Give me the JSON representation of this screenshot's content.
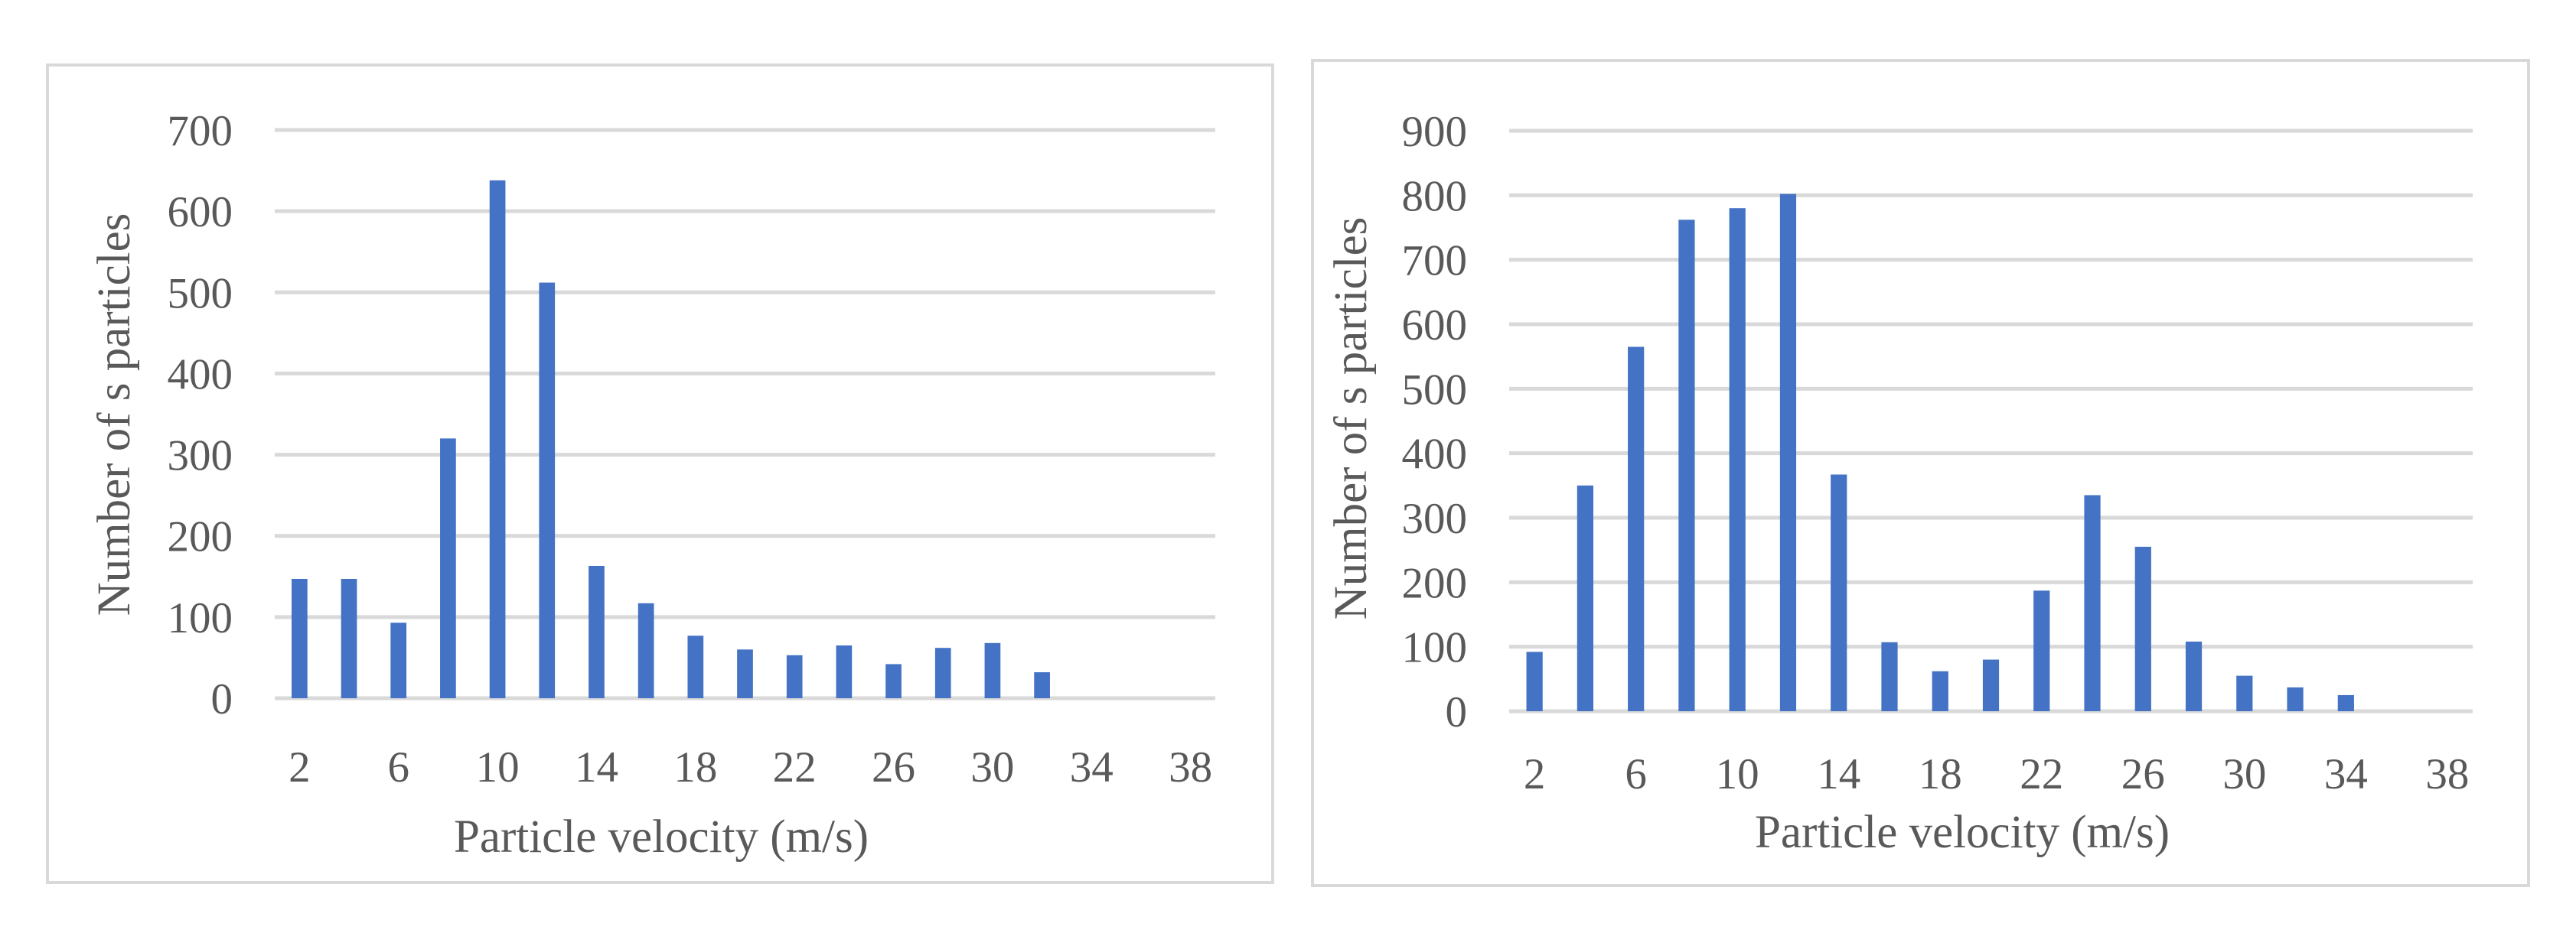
{
  "chart_data": [
    {
      "type": "bar",
      "xlabel": "Particle velocity (m/s)",
      "ylabel": "Number of s particles",
      "ylim": [
        0,
        700
      ],
      "y_ticks": [
        0,
        100,
        200,
        300,
        400,
        500,
        600,
        700
      ],
      "x_ticks": [
        "2",
        "6",
        "10",
        "14",
        "18",
        "22",
        "26",
        "30",
        "34",
        "38"
      ],
      "categories": [
        "2",
        "4",
        "6",
        "8",
        "10",
        "12",
        "14",
        "16",
        "18",
        "20",
        "22",
        "24",
        "26",
        "28",
        "30",
        "32",
        "34",
        "36",
        "38"
      ],
      "values": [
        147,
        147,
        93,
        320,
        638,
        512,
        163,
        117,
        77,
        60,
        53,
        65,
        42,
        62,
        68,
        32,
        0,
        0,
        0
      ],
      "bar_color": "#4472c4",
      "grid": true,
      "legend": "none"
    },
    {
      "type": "bar",
      "xlabel": "Particle velocity (m/s)",
      "ylabel": "Number of s particles",
      "ylim": [
        0,
        900
      ],
      "y_ticks": [
        0,
        100,
        200,
        300,
        400,
        500,
        600,
        700,
        800,
        900
      ],
      "x_ticks": [
        "2",
        "6",
        "10",
        "14",
        "18",
        "22",
        "26",
        "30",
        "34",
        "38"
      ],
      "categories": [
        "2",
        "4",
        "6",
        "8",
        "10",
        "12",
        "14",
        "16",
        "18",
        "20",
        "22",
        "24",
        "26",
        "28",
        "30",
        "32",
        "34",
        "36",
        "38"
      ],
      "values": [
        92,
        350,
        565,
        762,
        780,
        802,
        367,
        107,
        62,
        80,
        187,
        335,
        255,
        108,
        55,
        37,
        25,
        0,
        0
      ],
      "bar_color": "#4472c4",
      "grid": true,
      "legend": "none"
    }
  ]
}
